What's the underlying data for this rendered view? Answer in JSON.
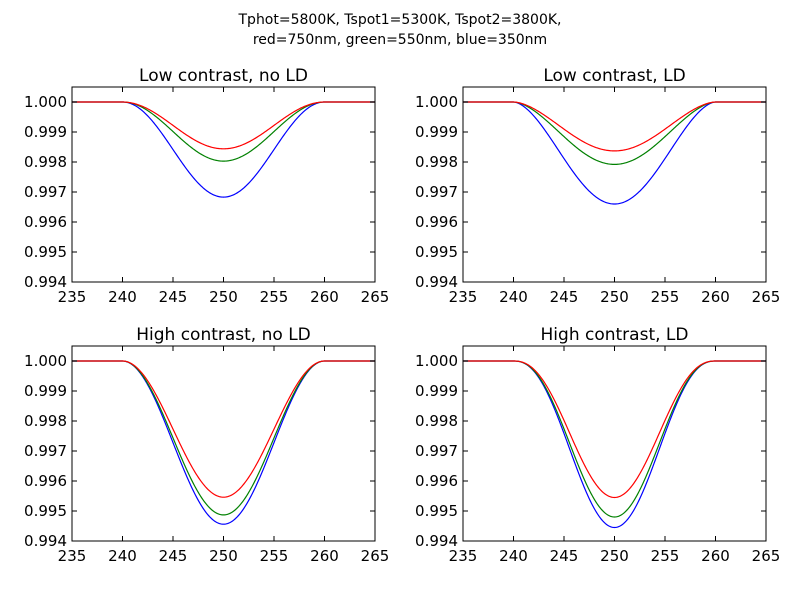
{
  "figure": {
    "suptitle_line1": "Tphot=5800K, Tspot1=5300K, Tspot2=3800K,",
    "suptitle_line2": "red=750nm, green=550nm, blue=350nm",
    "colors": {
      "red": "#ff0000",
      "green": "#008000",
      "blue": "#0000ff"
    }
  },
  "chart_data": [
    {
      "type": "line",
      "title": "Low contrast, no LD",
      "xlim": [
        235,
        265
      ],
      "ylim": [
        0.994,
        1.0005
      ],
      "xticks": [
        "235",
        "240",
        "245",
        "250",
        "255",
        "260",
        "265"
      ],
      "yticks": [
        "0.994",
        "0.995",
        "0.996",
        "0.997",
        "0.998",
        "0.999",
        "1.000"
      ],
      "grid": false,
      "dip": {
        "start": 240,
        "end": 260
      },
      "series": [
        {
          "color": "#0000ff",
          "depth": 0.00317,
          "shape": "cos"
        },
        {
          "color": "#008000",
          "depth": 0.00197,
          "shape": "cos"
        },
        {
          "color": "#ff0000",
          "depth": 0.00156,
          "shape": "cos"
        }
      ]
    },
    {
      "type": "line",
      "title": "Low contrast, LD",
      "xlim": [
        235,
        265
      ],
      "ylim": [
        0.994,
        1.0005
      ],
      "xticks": [
        "235",
        "240",
        "245",
        "250",
        "255",
        "260",
        "265"
      ],
      "yticks": [
        "0.994",
        "0.995",
        "0.996",
        "0.997",
        "0.998",
        "0.999",
        "1.000"
      ],
      "grid": false,
      "dip": {
        "start": 240,
        "end": 260
      },
      "series": [
        {
          "color": "#0000ff",
          "depth": 0.0034,
          "shape": "ld"
        },
        {
          "color": "#008000",
          "depth": 0.00208,
          "shape": "ld"
        },
        {
          "color": "#ff0000",
          "depth": 0.00163,
          "shape": "ld"
        }
      ]
    },
    {
      "type": "line",
      "title": "High contrast, no LD",
      "xlim": [
        235,
        265
      ],
      "ylim": [
        0.994,
        1.0005
      ],
      "xticks": [
        "235",
        "240",
        "245",
        "250",
        "255",
        "260",
        "265"
      ],
      "yticks": [
        "0.994",
        "0.995",
        "0.996",
        "0.997",
        "0.998",
        "0.999",
        "1.000"
      ],
      "grid": false,
      "dip": {
        "start": 240,
        "end": 260
      },
      "series": [
        {
          "color": "#0000ff",
          "depth": 0.00544,
          "shape": "cos"
        },
        {
          "color": "#008000",
          "depth": 0.00513,
          "shape": "cos"
        },
        {
          "color": "#ff0000",
          "depth": 0.00454,
          "shape": "cos"
        }
      ]
    },
    {
      "type": "line",
      "title": "High contrast, LD",
      "xlim": [
        235,
        265
      ],
      "ylim": [
        0.994,
        1.0005
      ],
      "xticks": [
        "235",
        "240",
        "245",
        "250",
        "255",
        "260",
        "265"
      ],
      "yticks": [
        "0.994",
        "0.995",
        "0.996",
        "0.997",
        "0.998",
        "0.999",
        "1.000"
      ],
      "grid": false,
      "dip": {
        "start": 240,
        "end": 260
      },
      "series": [
        {
          "color": "#0000ff",
          "depth": 0.00555,
          "shape": "ld_high"
        },
        {
          "color": "#008000",
          "depth": 0.0052,
          "shape": "ld_high"
        },
        {
          "color": "#ff0000",
          "depth": 0.00455,
          "shape": "ld_high"
        }
      ]
    }
  ]
}
